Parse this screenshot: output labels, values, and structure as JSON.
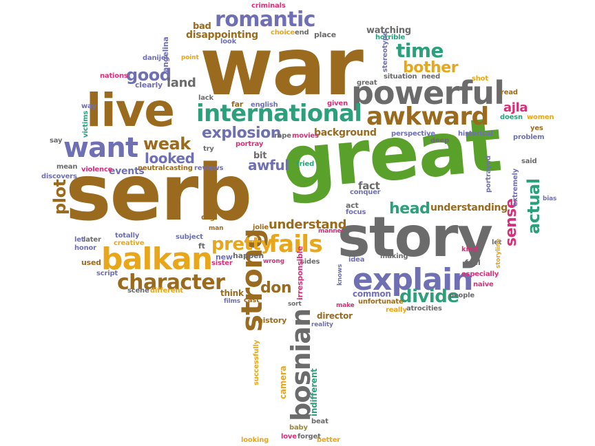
{
  "colors": {
    "brown": "#9a6b1e",
    "gray": "#6b6b6b",
    "green": "#5aa12c",
    "purple": "#6f6fb4",
    "teal": "#2ca07a",
    "pink": "#d6307a",
    "orange": "#e8a61b",
    "olive": "#9b8a3a"
  },
  "words": [
    {
      "text": "war",
      "color": "brown"
    },
    {
      "text": "serb",
      "color": "brown"
    },
    {
      "text": "great",
      "color": "green"
    },
    {
      "text": "story",
      "color": "gray"
    },
    {
      "text": "live",
      "color": "brown"
    },
    {
      "text": "powerful",
      "color": "gray"
    },
    {
      "text": "want",
      "color": "purple"
    },
    {
      "text": "international",
      "color": "teal"
    },
    {
      "text": "awkward",
      "color": "brown"
    },
    {
      "text": "explain",
      "color": "purple"
    },
    {
      "text": "balkan",
      "color": "orange"
    },
    {
      "text": "romantic",
      "color": "purple"
    },
    {
      "text": "character",
      "color": "brown"
    },
    {
      "text": "strong",
      "color": "brown"
    },
    {
      "text": "bosnian",
      "color": "gray"
    },
    {
      "text": "fails",
      "color": "orange"
    },
    {
      "text": "pretty",
      "color": "orange"
    },
    {
      "text": "divide",
      "color": "teal"
    },
    {
      "text": "time",
      "color": "teal"
    },
    {
      "text": "bother",
      "color": "orange"
    },
    {
      "text": "weak",
      "color": "brown"
    },
    {
      "text": "explosion",
      "color": "purple"
    },
    {
      "text": "looked",
      "color": "purple"
    },
    {
      "text": "head",
      "color": "teal"
    },
    {
      "text": "actual",
      "color": "teal"
    },
    {
      "text": "sense",
      "color": "pink"
    },
    {
      "text": "plot",
      "color": "brown"
    },
    {
      "text": "good",
      "color": "purple"
    },
    {
      "text": "land",
      "color": "gray"
    },
    {
      "text": "understand",
      "color": "brown"
    },
    {
      "text": "understanding",
      "color": "brown"
    },
    {
      "text": "don",
      "color": "brown"
    },
    {
      "text": "awful",
      "color": "purple"
    },
    {
      "text": "bit",
      "color": "gray"
    },
    {
      "text": "events",
      "color": "purple"
    },
    {
      "text": "ajla",
      "color": "pink"
    },
    {
      "text": "background",
      "color": "brown"
    },
    {
      "text": "fact",
      "color": "gray"
    },
    {
      "text": "disappointing",
      "color": "brown"
    },
    {
      "text": "watching",
      "color": "gray"
    },
    {
      "text": "criminals",
      "color": "pink"
    },
    {
      "text": "bad",
      "color": "brown"
    },
    {
      "text": "choice",
      "color": "orange"
    },
    {
      "text": "end",
      "color": "gray"
    },
    {
      "text": "place",
      "color": "gray"
    },
    {
      "text": "look",
      "color": "purple"
    },
    {
      "text": "horrible",
      "color": "teal"
    },
    {
      "text": "stereotype",
      "color": "purple"
    },
    {
      "text": "angelina",
      "color": "purple"
    },
    {
      "text": "danijel",
      "color": "purple"
    },
    {
      "text": "nations",
      "color": "pink"
    },
    {
      "text": "clearly",
      "color": "purple"
    },
    {
      "text": "situation",
      "color": "gray"
    },
    {
      "text": "need",
      "color": "gray"
    },
    {
      "text": "shot",
      "color": "orange"
    },
    {
      "text": "read",
      "color": "brown"
    },
    {
      "text": "lack",
      "color": "gray"
    },
    {
      "text": "far",
      "color": "brown"
    },
    {
      "text": "english",
      "color": "purple"
    },
    {
      "text": "given",
      "color": "pink"
    },
    {
      "text": "great",
      "color": "gray"
    },
    {
      "text": "doesn",
      "color": "teal"
    },
    {
      "text": "women",
      "color": "orange"
    },
    {
      "text": "yes",
      "color": "brown"
    },
    {
      "text": "way",
      "color": "purple"
    },
    {
      "text": "victims",
      "color": "teal"
    },
    {
      "text": "say",
      "color": "gray"
    },
    {
      "text": "mean",
      "color": "gray"
    },
    {
      "text": "rape",
      "color": "gray"
    },
    {
      "text": "movies",
      "color": "pink"
    },
    {
      "text": "perspective",
      "color": "purple"
    },
    {
      "text": "deep",
      "color": "gray"
    },
    {
      "text": "historical",
      "color": "purple"
    },
    {
      "text": "problem",
      "color": "purple"
    },
    {
      "text": "portray",
      "color": "pink"
    },
    {
      "text": "try",
      "color": "gray"
    },
    {
      "text": "tried",
      "color": "teal"
    },
    {
      "text": "said",
      "color": "gray"
    },
    {
      "text": "violence",
      "color": "pink"
    },
    {
      "text": "neutral",
      "color": "brown"
    },
    {
      "text": "casting",
      "color": "brown"
    },
    {
      "text": "reviews",
      "color": "purple"
    },
    {
      "text": "discovers",
      "color": "purple"
    },
    {
      "text": "portrayed",
      "color": "purple"
    },
    {
      "text": "extremely",
      "color": "purple"
    },
    {
      "text": "bias",
      "color": "purple"
    },
    {
      "text": "conquer",
      "color": "purple"
    },
    {
      "text": "act",
      "color": "gray"
    },
    {
      "text": "focus",
      "color": "purple"
    },
    {
      "text": "org",
      "color": "brown"
    },
    {
      "text": "man",
      "color": "brown"
    },
    {
      "text": "jolie",
      "color": "brown"
    },
    {
      "text": "manner",
      "color": "pink"
    },
    {
      "text": "let",
      "color": "purple"
    },
    {
      "text": "let",
      "color": "gray"
    },
    {
      "text": "later",
      "color": "gray"
    },
    {
      "text": "totally",
      "color": "purple"
    },
    {
      "text": "subject",
      "color": "purple"
    },
    {
      "text": "creative",
      "color": "orange"
    },
    {
      "text": "honor",
      "color": "purple"
    },
    {
      "text": "used",
      "color": "brown"
    },
    {
      "text": "script",
      "color": "purple"
    },
    {
      "text": "scene",
      "color": "gray"
    },
    {
      "text": "different",
      "color": "orange"
    },
    {
      "text": "ft",
      "color": "gray"
    },
    {
      "text": "new",
      "color": "purple"
    },
    {
      "text": "sister",
      "color": "pink"
    },
    {
      "text": "happen",
      "color": "gray"
    },
    {
      "text": "wrong",
      "color": "pink"
    },
    {
      "text": "sides",
      "color": "gray"
    },
    {
      "text": "idea",
      "color": "purple"
    },
    {
      "text": "making",
      "color": "gray"
    },
    {
      "text": "kind",
      "color": "pink"
    },
    {
      "text": "feel",
      "color": "gray"
    },
    {
      "text": "storyline",
      "color": "orange"
    },
    {
      "text": "knows",
      "color": "purple"
    },
    {
      "text": "especially",
      "color": "pink"
    },
    {
      "text": "naive",
      "color": "pink"
    },
    {
      "text": "common",
      "color": "purple"
    },
    {
      "text": "unfortunate",
      "color": "brown"
    },
    {
      "text": "really",
      "color": "orange"
    },
    {
      "text": "atrocities",
      "color": "gray"
    },
    {
      "text": "people",
      "color": "gray"
    },
    {
      "text": "make",
      "color": "pink"
    },
    {
      "text": "think",
      "color": "brown"
    },
    {
      "text": "films",
      "color": "purple"
    },
    {
      "text": "cast",
      "color": "brown"
    },
    {
      "text": "director",
      "color": "brown"
    },
    {
      "text": "reality",
      "color": "purple"
    },
    {
      "text": "history",
      "color": "brown"
    },
    {
      "text": "sort",
      "color": "gray"
    },
    {
      "text": "irresponsible",
      "color": "pink"
    },
    {
      "text": "successfully",
      "color": "orange"
    },
    {
      "text": "camera",
      "color": "orange"
    },
    {
      "text": "indifferent",
      "color": "teal"
    },
    {
      "text": "beat",
      "color": "gray"
    },
    {
      "text": "baby",
      "color": "olive"
    },
    {
      "text": "love",
      "color": "pink"
    },
    {
      "text": "forget",
      "color": "gray"
    },
    {
      "text": "better",
      "color": "orange"
    },
    {
      "text": "looking",
      "color": "orange"
    },
    {
      "text": "point",
      "color": "orange"
    }
  ]
}
